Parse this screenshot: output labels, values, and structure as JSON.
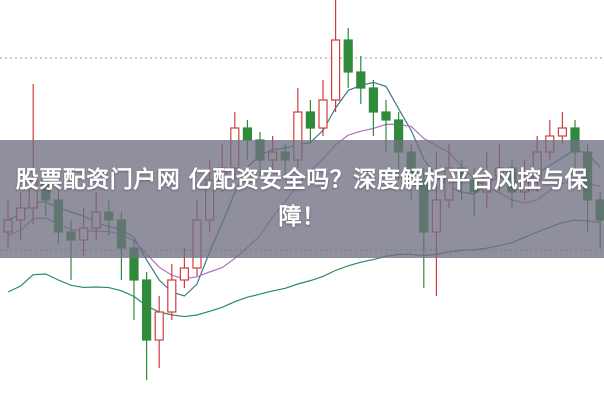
{
  "title": "股票配资门户网 亿配资安全吗？深度解析平台风控与保障！",
  "chart_data": {
    "type": "candlestick",
    "title": "",
    "xlabel": "",
    "ylabel": "",
    "grid": true,
    "colors": {
      "up": "#d23c3c",
      "down": "#2f8a3a",
      "ma_short": "#3a7a8c",
      "ma_mid": "#b070c0",
      "ma_long": "#2a8a6a"
    },
    "candles": [
      [
        42,
        45,
        50,
        38
      ],
      [
        45,
        48,
        52,
        40
      ],
      [
        48,
        55,
        79,
        44
      ],
      [
        55,
        50,
        58,
        46
      ],
      [
        50,
        42,
        53,
        39
      ],
      [
        42,
        40,
        45,
        30
      ],
      [
        40,
        43,
        48,
        36
      ],
      [
        43,
        47,
        52,
        40
      ],
      [
        47,
        45,
        50,
        41
      ],
      [
        45,
        38,
        47,
        30
      ],
      [
        38,
        30,
        40,
        20
      ],
      [
        30,
        15,
        32,
        5
      ],
      [
        15,
        22,
        26,
        8
      ],
      [
        22,
        30,
        34,
        20
      ],
      [
        30,
        33,
        38,
        28
      ],
      [
        33,
        45,
        50,
        31
      ],
      [
        45,
        55,
        60,
        42
      ],
      [
        55,
        58,
        64,
        52
      ],
      [
        58,
        68,
        72,
        55
      ],
      [
        68,
        65,
        70,
        60
      ],
      [
        65,
        60,
        67,
        56
      ],
      [
        60,
        62,
        66,
        57
      ],
      [
        62,
        60,
        64,
        55
      ],
      [
        60,
        72,
        78,
        58
      ],
      [
        72,
        68,
        75,
        64
      ],
      [
        68,
        75,
        80,
        66
      ],
      [
        75,
        90,
        100,
        72
      ],
      [
        90,
        82,
        93,
        78
      ],
      [
        82,
        78,
        86,
        74
      ],
      [
        78,
        72,
        80,
        66
      ],
      [
        72,
        70,
        75,
        62
      ],
      [
        70,
        62,
        72,
        55
      ],
      [
        62,
        55,
        64,
        50
      ],
      [
        55,
        42,
        58,
        28
      ],
      [
        42,
        50,
        62,
        26
      ],
      [
        50,
        58,
        64,
        48
      ],
      [
        58,
        55,
        60,
        50
      ],
      [
        55,
        52,
        58,
        46
      ],
      [
        52,
        56,
        62,
        48
      ],
      [
        56,
        58,
        64,
        52
      ],
      [
        58,
        52,
        60,
        48
      ],
      [
        52,
        55,
        60,
        50
      ],
      [
        55,
        62,
        66,
        52
      ],
      [
        62,
        66,
        70,
        60
      ],
      [
        66,
        68,
        72,
        64
      ],
      [
        68,
        62,
        70,
        56
      ],
      [
        62,
        50,
        64,
        42
      ],
      [
        50,
        45,
        52,
        38
      ]
    ]
  }
}
